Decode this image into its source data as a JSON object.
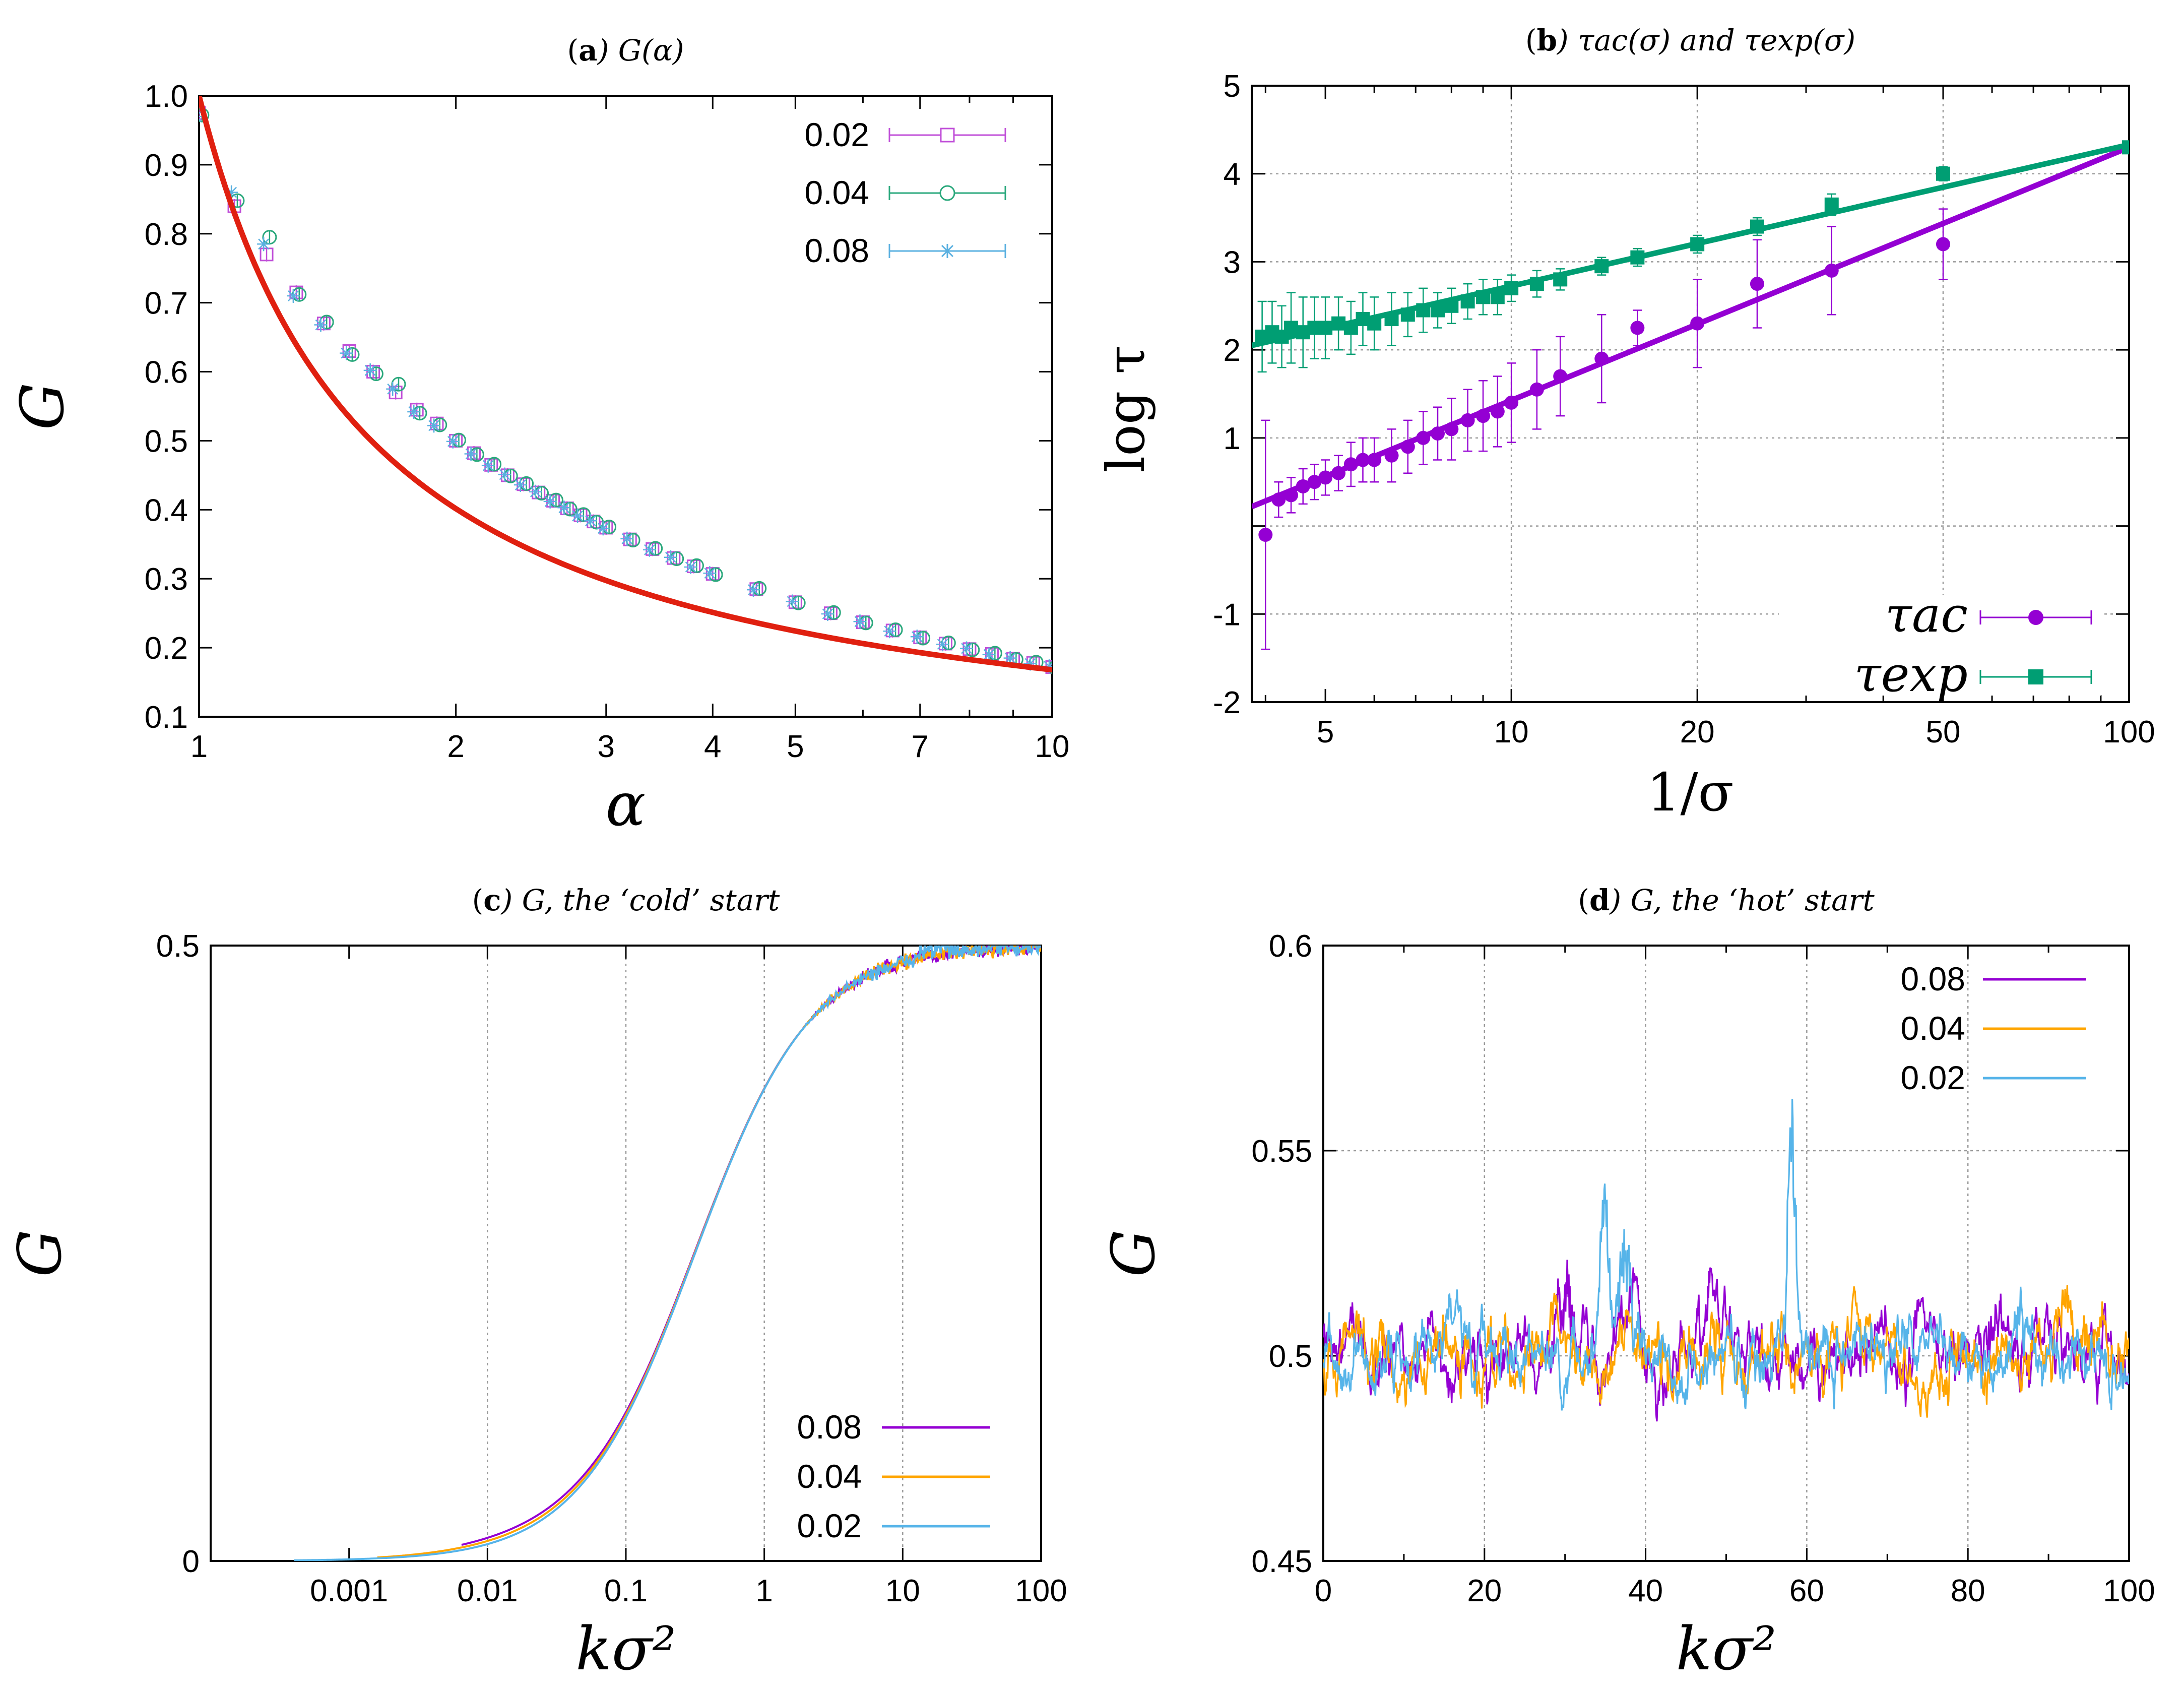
{
  "colors": {
    "purple": "#9400d3",
    "green": "#009e73",
    "orange": "#ffa500",
    "cyan": "#56b4e9",
    "red": "#e02010",
    "magenta": "#c04fd8",
    "teal": "#2aa87c",
    "sky": "#5ab0e0"
  },
  "chart_data": [
    {
      "id": "a",
      "type": "scatter",
      "title_letter": "a",
      "title_rest": "G(α)",
      "xlabel": "α",
      "ylabel": "G",
      "xscale": "log",
      "xlim": [
        1,
        10
      ],
      "ylim": [
        0.1,
        1.0
      ],
      "xticks": [
        1,
        2,
        3,
        4,
        5,
        7,
        10
      ],
      "xtick_labels": [
        "1",
        "2",
        "3",
        "4",
        "5",
        "7",
        "10"
      ],
      "yticks": [
        0.1,
        0.2,
        0.3,
        0.4,
        0.5,
        0.6,
        0.7,
        0.8,
        0.9,
        1.0
      ],
      "ytick_labels": [
        "0.1",
        "0.2",
        "0.3",
        "0.4",
        "0.5",
        "0.6",
        "0.7",
        "0.8",
        "0.9",
        "1.0"
      ],
      "grid": false,
      "legend": "top-right",
      "fit": "G = 1/(1 + 2.15 ln α)",
      "x": [
        1.0,
        1.1,
        1.2,
        1.3,
        1.4,
        1.5,
        1.6,
        1.7,
        1.8,
        1.9,
        2.0,
        2.1,
        2.2,
        2.3,
        2.4,
        2.5,
        2.6,
        2.7,
        2.8,
        2.9,
        3.0,
        3.2,
        3.4,
        3.6,
        3.8,
        4.0,
        4.5,
        5.0,
        5.5,
        6.0,
        6.5,
        7.0,
        7.5,
        8.0,
        8.5,
        9.0,
        9.5,
        10.0
      ],
      "series": [
        {
          "name": "0.02",
          "marker": "square",
          "values": [
            0.975,
            0.84,
            0.77,
            0.715,
            0.67,
            0.63,
            0.6,
            0.57,
            0.545,
            0.525,
            0.5,
            0.482,
            0.465,
            0.45,
            0.437,
            0.425,
            0.413,
            0.402,
            0.392,
            0.383,
            0.374,
            0.357,
            0.343,
            0.33,
            0.318,
            0.307,
            0.285,
            0.266,
            0.25,
            0.237,
            0.225,
            0.215,
            0.206,
            0.198,
            0.191,
            0.184,
            0.178,
            0.172
          ]
        },
        {
          "name": "0.04",
          "marker": "circle",
          "values": [
            0.972,
            0.848,
            0.795,
            0.712,
            0.672,
            0.625,
            0.597,
            0.582,
            0.54,
            0.523,
            0.501,
            0.48,
            0.466,
            0.449,
            0.438,
            0.424,
            0.414,
            0.401,
            0.393,
            0.382,
            0.375,
            0.356,
            0.344,
            0.329,
            0.319,
            0.306,
            0.286,
            0.265,
            0.251,
            0.236,
            0.226,
            0.214,
            0.207,
            0.197,
            0.192,
            0.183,
            0.179,
            0.171
          ]
        },
        {
          "name": "0.08",
          "marker": "star",
          "values": [
            0.97,
            0.86,
            0.785,
            0.71,
            0.668,
            0.627,
            0.602,
            0.575,
            0.542,
            0.522,
            0.499,
            0.481,
            0.464,
            0.451,
            0.436,
            0.426,
            0.412,
            0.403,
            0.391,
            0.384,
            0.373,
            0.358,
            0.342,
            0.331,
            0.317,
            0.308,
            0.284,
            0.267,
            0.249,
            0.238,
            0.224,
            0.216,
            0.205,
            0.199,
            0.19,
            0.185,
            0.177,
            0.173
          ]
        }
      ]
    },
    {
      "id": "b",
      "type": "scatter",
      "title_letter": "b",
      "title_rest": "τac(σ) and τexp(σ)",
      "xlabel": "1/σ",
      "ylabel": "log τ",
      "xscale": "log",
      "xlim": [
        3.8,
        100
      ],
      "ylim": [
        -2,
        5
      ],
      "xticks": [
        5,
        10,
        20,
        50,
        100
      ],
      "xtick_labels": [
        "5",
        "10",
        "20",
        "50",
        "100"
      ],
      "yticks": [
        -2,
        -1,
        0,
        1,
        2,
        3,
        4,
        5
      ],
      "ytick_labels": [
        "-2",
        "-1",
        "",
        "1",
        "2",
        "3",
        "4",
        "5"
      ],
      "grid": true,
      "legend": "bottom-right",
      "legend_labels": [
        "τac",
        "τexp"
      ],
      "series": [
        {
          "name": "tau_ac",
          "marker": "circle-filled",
          "x": [
            4,
            4.2,
            4.4,
            4.6,
            4.8,
            5.0,
            5.25,
            5.5,
            5.75,
            6.0,
            6.4,
            6.8,
            7.2,
            7.6,
            8.0,
            8.5,
            9.0,
            9.5,
            10,
            11,
            12,
            14,
            16,
            20,
            25,
            33,
            50
          ],
          "y": [
            -0.1,
            0.3,
            0.35,
            0.45,
            0.5,
            0.55,
            0.6,
            0.7,
            0.75,
            0.75,
            0.8,
            0.9,
            1.0,
            1.05,
            1.1,
            1.2,
            1.25,
            1.3,
            1.4,
            1.55,
            1.7,
            1.9,
            2.25,
            2.3,
            2.75,
            2.9,
            3.2
          ],
          "err": [
            1.3,
            0.2,
            0.2,
            0.2,
            0.2,
            0.2,
            0.2,
            0.25,
            0.25,
            0.25,
            0.3,
            0.3,
            0.3,
            0.3,
            0.35,
            0.35,
            0.4,
            0.4,
            0.45,
            0.45,
            0.45,
            0.5,
            0.2,
            0.5,
            0.5,
            0.5,
            0.4
          ],
          "fit": [
            [
              3.8,
              0.22
            ],
            [
              100,
              4.3
            ]
          ]
        },
        {
          "name": "tau_exp",
          "marker": "square-filled",
          "x": [
            3.95,
            4.1,
            4.25,
            4.4,
            4.6,
            4.8,
            5.0,
            5.25,
            5.5,
            5.75,
            6.0,
            6.4,
            6.8,
            7.2,
            7.6,
            8.0,
            8.5,
            9.0,
            9.5,
            10,
            11,
            12,
            14,
            16,
            20,
            25,
            33,
            50,
            100
          ],
          "y": [
            2.15,
            2.2,
            2.15,
            2.25,
            2.2,
            2.25,
            2.25,
            2.3,
            2.25,
            2.35,
            2.3,
            2.35,
            2.4,
            2.45,
            2.45,
            2.5,
            2.55,
            2.6,
            2.6,
            2.7,
            2.75,
            2.8,
            2.95,
            3.05,
            3.2,
            3.4,
            3.65,
            4.0,
            4.3
          ],
          "err": [
            0.4,
            0.35,
            0.35,
            0.4,
            0.4,
            0.35,
            0.35,
            0.3,
            0.3,
            0.3,
            0.3,
            0.3,
            0.25,
            0.25,
            0.2,
            0.2,
            0.2,
            0.2,
            0.2,
            0.15,
            0.15,
            0.12,
            0.1,
            0.1,
            0.1,
            0.1,
            0.12,
            0.08,
            0.05
          ],
          "fit": [
            [
              3.8,
              2.05
            ],
            [
              100,
              4.33
            ]
          ]
        }
      ]
    },
    {
      "id": "c",
      "type": "line",
      "title_letter": "c",
      "title_rest": "G, the ‘cold’ start",
      "xlabel": "kσ²",
      "ylabel": "G",
      "xscale": "log",
      "xlim": [
        0.0001,
        100
      ],
      "ylim": [
        0,
        0.5
      ],
      "xticks": [
        0.001,
        0.01,
        0.1,
        1,
        10,
        100
      ],
      "xtick_labels": [
        "0.001",
        "0.01",
        "0.1",
        "1",
        "10",
        "100"
      ],
      "yticks": [
        0,
        0.5
      ],
      "ytick_labels": [
        "0",
        "0.5"
      ],
      "grid": true,
      "legend": "bottom-right",
      "series": [
        {
          "name": "0.08",
          "start": 0.0065
        },
        {
          "name": "0.04",
          "start": 0.0016
        },
        {
          "name": "0.02",
          "start": 0.0004
        }
      ]
    },
    {
      "id": "d",
      "type": "line",
      "title_letter": "d",
      "title_rest": "G, the ‘hot’ start",
      "xlabel": "kσ²",
      "ylabel": "G",
      "xscale": "linear",
      "xlim": [
        0,
        100
      ],
      "ylim": [
        0.45,
        0.6
      ],
      "xticks": [
        0,
        20,
        40,
        60,
        80,
        100
      ],
      "xtick_labels": [
        "0",
        "20",
        "40",
        "60",
        "80",
        "100"
      ],
      "yticks": [
        0.45,
        0.5,
        0.55,
        0.6
      ],
      "ytick_labels": [
        "0.45",
        "0.5",
        "0.55",
        "0.6"
      ],
      "grid": true,
      "legend": "top-right",
      "series": [
        {
          "name": "0.08",
          "bumps": [
            [
              30,
              0.018
            ],
            [
              38,
              0.01
            ],
            [
              48,
              0.012
            ],
            [
              83,
              0.012
            ]
          ]
        },
        {
          "name": "0.04",
          "bumps": [
            [
              92,
              0.012
            ]
          ]
        },
        {
          "name": "0.02",
          "bumps": [
            [
              35,
              0.03
            ],
            [
              37.5,
              0.03
            ],
            [
              58,
              0.045
            ],
            [
              86,
              0.012
            ]
          ]
        }
      ]
    }
  ]
}
